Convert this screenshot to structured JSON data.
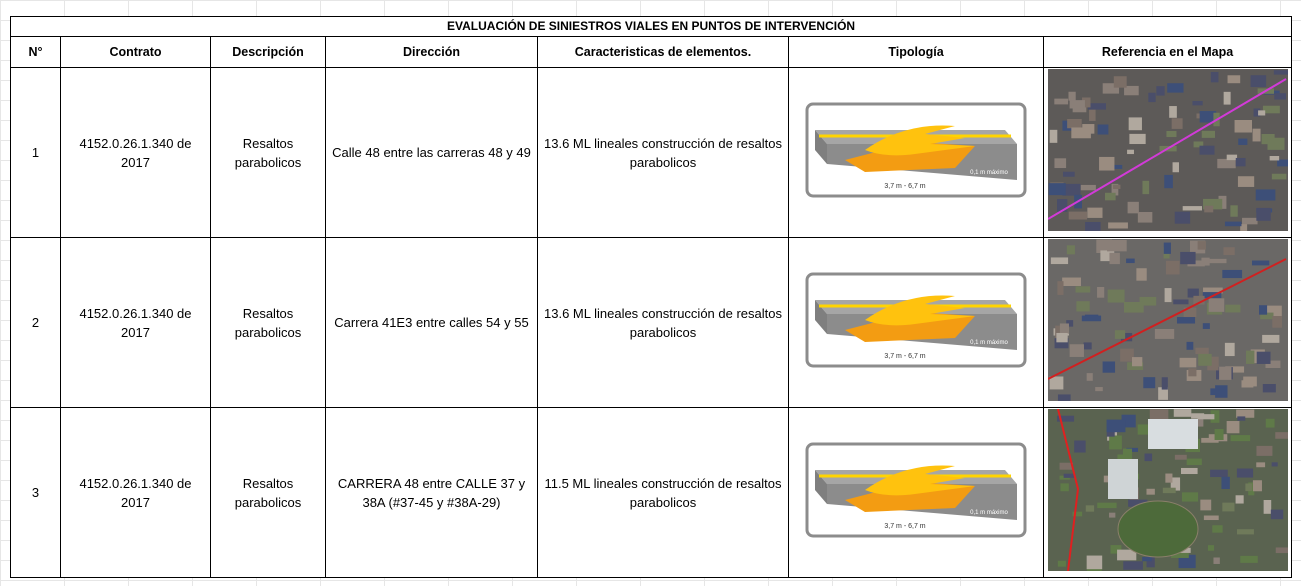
{
  "title": "EVALUACIÓN DE SINIESTROS VIALES EN PUNTOS DE INTERVENCIÓN",
  "table": {
    "header": [
      "N°",
      "Contrato",
      "Descripción",
      "Dirección",
      "Caracteristicas de elementos.",
      "Tipología",
      "Referencia en el Mapa"
    ],
    "rows": [
      [
        "1",
        "4152.0.26.1.340 de 2017",
        "Resaltos parabolicos",
        "Calle 48 entre las carreras 48 y 49",
        "13.6 ML lineales construcción de resaltos parabolicos"
      ],
      [
        "2",
        "4152.0.26.1.340 de 2017",
        "Resaltos parabolicos",
        "Carrera 41E3 entre calles 54 y 55",
        "13.6 ML lineales construcción de resaltos parabolicos"
      ],
      [
        "3",
        "4152.0.26.1.340 de 2017",
        "Resaltos parabolicos",
        "CARRERA 48 entre CALLE 37 y 38A (#37-45 y #38A-29)",
        "11.5 ML lineales construcción de resaltos parabolicos"
      ]
    ]
  },
  "typology_labels": {
    "width": "3,7 m - 6,7 m",
    "height": "0,1 m máximo"
  }
}
